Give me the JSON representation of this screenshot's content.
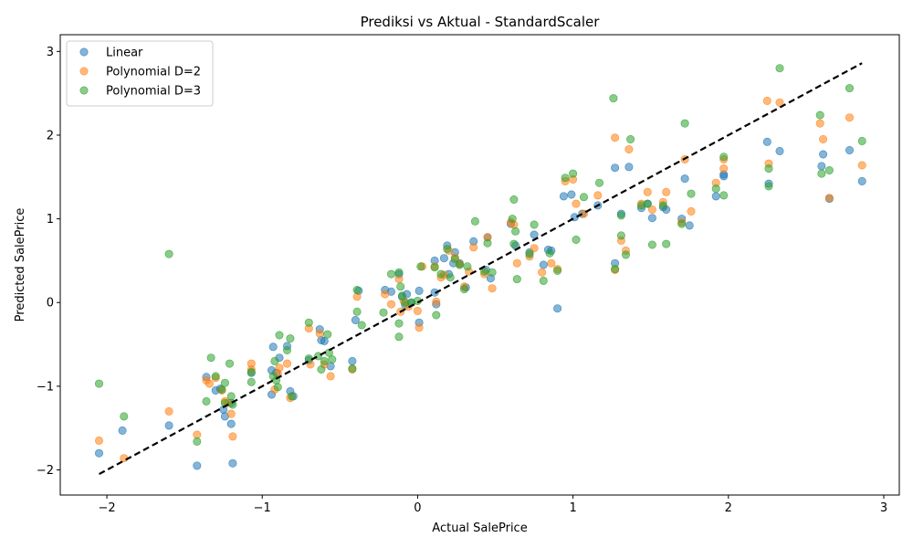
{
  "chart_data": {
    "type": "scatter",
    "title": "Prediksi vs Aktual - StandardScaler",
    "xlabel": "Actual SalePrice",
    "ylabel": "Predicted SalePrice",
    "xlim": [
      -2.3,
      3.1
    ],
    "ylim": [
      -2.3,
      3.2
    ],
    "xticks": [
      -2,
      -1,
      0,
      1,
      2,
      3
    ],
    "yticks": [
      -2,
      -1,
      0,
      1,
      2,
      3
    ],
    "xtick_labels": [
      "−2",
      "−1",
      "0",
      "1",
      "2",
      "3"
    ],
    "ytick_labels": [
      "−2",
      "−1",
      "0",
      "1",
      "2",
      "3"
    ],
    "grid": false,
    "legend_position": "top-left",
    "reference_line": {
      "x": [
        -2.05,
        2.86
      ],
      "y": [
        -2.05,
        2.86
      ],
      "color": "#000000",
      "style": "dashed"
    },
    "series": [
      {
        "name": "Linear",
        "color": "#1f77b4",
        "points": [
          [
            -2.05,
            -1.8
          ],
          [
            -1.9,
            -1.53
          ],
          [
            -1.6,
            -1.47
          ],
          [
            -1.42,
            -1.95
          ],
          [
            -1.19,
            -1.92
          ],
          [
            -1.36,
            -0.89
          ],
          [
            -1.3,
            -1.05
          ],
          [
            -1.27,
            -1.03
          ],
          [
            -1.25,
            -1.28
          ],
          [
            -1.24,
            -1.36
          ],
          [
            -1.2,
            -1.45
          ],
          [
            -1.2,
            -1.2
          ],
          [
            -1.07,
            -0.84
          ],
          [
            -0.94,
            -1.1
          ],
          [
            -0.94,
            -0.81
          ],
          [
            -0.93,
            -0.53
          ],
          [
            -0.91,
            -0.84
          ],
          [
            -0.89,
            -0.66
          ],
          [
            -0.84,
            -0.52
          ],
          [
            -0.82,
            -1.06
          ],
          [
            -0.8,
            -1.12
          ],
          [
            -0.7,
            -0.69
          ],
          [
            -0.63,
            -0.32
          ],
          [
            -0.62,
            -0.45
          ],
          [
            -0.6,
            -0.46
          ],
          [
            -0.56,
            -0.76
          ],
          [
            -0.42,
            -0.7
          ],
          [
            -0.4,
            -0.21
          ],
          [
            -0.38,
            0.14
          ],
          [
            -0.21,
            0.15
          ],
          [
            -0.17,
            0.13
          ],
          [
            -0.12,
            0.34
          ],
          [
            -0.1,
            0.07
          ],
          [
            -0.08,
            -0.03
          ],
          [
            -0.07,
            0.1
          ],
          [
            -0.04,
            0.0
          ],
          [
            0.01,
            0.14
          ],
          [
            0.01,
            -0.24
          ],
          [
            0.11,
            0.5
          ],
          [
            0.11,
            0.12
          ],
          [
            0.12,
            -0.02
          ],
          [
            0.17,
            0.53
          ],
          [
            0.19,
            0.68
          ],
          [
            0.2,
            0.34
          ],
          [
            0.23,
            0.47
          ],
          [
            0.24,
            0.6
          ],
          [
            0.27,
            0.47
          ],
          [
            0.31,
            0.18
          ],
          [
            0.36,
            0.73
          ],
          [
            0.44,
            0.39
          ],
          [
            0.45,
            0.78
          ],
          [
            0.47,
            0.29
          ],
          [
            0.6,
            0.94
          ],
          [
            0.63,
            0.68
          ],
          [
            0.72,
            0.6
          ],
          [
            0.75,
            0.81
          ],
          [
            0.81,
            0.45
          ],
          [
            0.84,
            0.63
          ],
          [
            0.86,
            0.62
          ],
          [
            0.9,
            -0.07
          ],
          [
            0.94,
            1.27
          ],
          [
            0.99,
            1.29
          ],
          [
            1.01,
            1.02
          ],
          [
            1.06,
            1.06
          ],
          [
            1.16,
            1.16
          ],
          [
            1.27,
            1.61
          ],
          [
            1.27,
            0.47
          ],
          [
            1.31,
            1.06
          ],
          [
            1.36,
            1.62
          ],
          [
            1.44,
            1.13
          ],
          [
            1.48,
            1.18
          ],
          [
            1.51,
            1.01
          ],
          [
            1.58,
            1.14
          ],
          [
            1.6,
            1.11
          ],
          [
            1.7,
            1.0
          ],
          [
            1.72,
            1.48
          ],
          [
            1.75,
            0.92
          ],
          [
            1.92,
            1.27
          ],
          [
            1.97,
            1.51
          ],
          [
            1.97,
            1.53
          ],
          [
            2.25,
            1.92
          ],
          [
            2.26,
            1.42
          ],
          [
            2.33,
            1.81
          ],
          [
            2.6,
            1.63
          ],
          [
            2.61,
            1.77
          ],
          [
            2.65,
            1.24
          ],
          [
            2.78,
            1.82
          ],
          [
            2.86,
            1.45
          ]
        ]
      },
      {
        "name": "Polynomial D=2",
        "color": "#ff7f0e",
        "points": [
          [
            -2.05,
            -1.65
          ],
          [
            -1.89,
            -1.86
          ],
          [
            -1.6,
            -1.3
          ],
          [
            -1.42,
            -1.58
          ],
          [
            -1.19,
            -1.6
          ],
          [
            -1.36,
            -0.93
          ],
          [
            -1.34,
            -0.97
          ],
          [
            -1.3,
            -0.9
          ],
          [
            -1.26,
            -1.05
          ],
          [
            -1.24,
            -1.18
          ],
          [
            -1.22,
            -1.2
          ],
          [
            -1.2,
            -1.33
          ],
          [
            -1.07,
            -0.73
          ],
          [
            -1.07,
            -0.8
          ],
          [
            -0.92,
            -1.04
          ],
          [
            -0.9,
            -0.85
          ],
          [
            -0.89,
            -0.78
          ],
          [
            -0.84,
            -0.73
          ],
          [
            -0.82,
            -1.14
          ],
          [
            -0.7,
            -0.31
          ],
          [
            -0.69,
            -0.74
          ],
          [
            -0.63,
            -0.37
          ],
          [
            -0.6,
            -0.74
          ],
          [
            -0.56,
            -0.88
          ],
          [
            -0.42,
            -0.8
          ],
          [
            -0.39,
            0.07
          ],
          [
            -0.21,
            0.1
          ],
          [
            -0.17,
            -0.02
          ],
          [
            -0.12,
            0.28
          ],
          [
            -0.11,
            -0.11
          ],
          [
            -0.09,
            0.02
          ],
          [
            -0.06,
            -0.05
          ],
          [
            0.0,
            -0.1
          ],
          [
            0.01,
            -0.3
          ],
          [
            0.03,
            0.43
          ],
          [
            0.11,
            0.43
          ],
          [
            0.12,
            0.01
          ],
          [
            0.15,
            0.3
          ],
          [
            0.17,
            0.33
          ],
          [
            0.2,
            0.62
          ],
          [
            0.24,
            0.54
          ],
          [
            0.27,
            0.46
          ],
          [
            0.3,
            0.19
          ],
          [
            0.33,
            0.37
          ],
          [
            0.36,
            0.66
          ],
          [
            0.43,
            0.34
          ],
          [
            0.45,
            0.78
          ],
          [
            0.48,
            0.17
          ],
          [
            0.6,
            0.96
          ],
          [
            0.62,
            0.93
          ],
          [
            0.64,
            0.47
          ],
          [
            0.72,
            0.55
          ],
          [
            0.75,
            0.65
          ],
          [
            0.8,
            0.36
          ],
          [
            0.86,
            0.47
          ],
          [
            0.9,
            0.4
          ],
          [
            0.95,
            1.45
          ],
          [
            1.0,
            1.47
          ],
          [
            1.02,
            1.18
          ],
          [
            1.07,
            1.06
          ],
          [
            1.16,
            1.28
          ],
          [
            1.27,
            1.97
          ],
          [
            1.27,
            0.39
          ],
          [
            1.31,
            0.74
          ],
          [
            1.34,
            0.62
          ],
          [
            1.36,
            1.83
          ],
          [
            1.44,
            1.18
          ],
          [
            1.48,
            1.32
          ],
          [
            1.51,
            1.11
          ],
          [
            1.58,
            1.2
          ],
          [
            1.6,
            1.32
          ],
          [
            1.7,
            0.96
          ],
          [
            1.72,
            1.71
          ],
          [
            1.76,
            1.09
          ],
          [
            1.92,
            1.43
          ],
          [
            1.97,
            1.6
          ],
          [
            1.97,
            1.71
          ],
          [
            2.25,
            2.41
          ],
          [
            2.26,
            1.66
          ],
          [
            2.33,
            2.39
          ],
          [
            2.59,
            2.14
          ],
          [
            2.61,
            1.95
          ],
          [
            2.65,
            1.25
          ],
          [
            2.78,
            2.21
          ],
          [
            2.86,
            1.64
          ]
        ]
      },
      {
        "name": "Polynomial D=3",
        "color": "#2ca02c",
        "points": [
          [
            -2.05,
            -0.97
          ],
          [
            -1.89,
            -1.36
          ],
          [
            -1.6,
            0.58
          ],
          [
            -1.42,
            -1.66
          ],
          [
            -1.36,
            -1.18
          ],
          [
            -1.33,
            -0.66
          ],
          [
            -1.3,
            -0.88
          ],
          [
            -1.26,
            -1.04
          ],
          [
            -1.24,
            -0.96
          ],
          [
            -1.24,
            -1.2
          ],
          [
            -1.21,
            -0.73
          ],
          [
            -1.2,
            -1.12
          ],
          [
            -1.19,
            -1.22
          ],
          [
            -1.07,
            -0.95
          ],
          [
            -1.07,
            -0.83
          ],
          [
            -0.93,
            -0.88
          ],
          [
            -0.92,
            -0.7
          ],
          [
            -0.91,
            -0.93
          ],
          [
            -0.9,
            -1.01
          ],
          [
            -0.89,
            -0.39
          ],
          [
            -0.84,
            -0.57
          ],
          [
            -0.82,
            -0.43
          ],
          [
            -0.81,
            -1.12
          ],
          [
            -0.7,
            -0.24
          ],
          [
            -0.7,
            -0.67
          ],
          [
            -0.64,
            -0.64
          ],
          [
            -0.62,
            -0.8
          ],
          [
            -0.6,
            -0.7
          ],
          [
            -0.58,
            -0.38
          ],
          [
            -0.57,
            -0.6
          ],
          [
            -0.55,
            -0.68
          ],
          [
            -0.42,
            -0.79
          ],
          [
            -0.39,
            0.15
          ],
          [
            -0.39,
            -0.11
          ],
          [
            -0.36,
            -0.27
          ],
          [
            -0.22,
            -0.12
          ],
          [
            -0.17,
            0.34
          ],
          [
            -0.12,
            0.36
          ],
          [
            -0.12,
            -0.25
          ],
          [
            -0.12,
            -0.41
          ],
          [
            -0.11,
            0.19
          ],
          [
            -0.1,
            0.08
          ],
          [
            -0.08,
            0.0
          ],
          [
            -0.04,
            0.0
          ],
          [
            0.0,
            0.02
          ],
          [
            0.02,
            0.43
          ],
          [
            0.11,
            0.42
          ],
          [
            0.12,
            -0.15
          ],
          [
            0.15,
            0.34
          ],
          [
            0.19,
            0.64
          ],
          [
            0.21,
            0.3
          ],
          [
            0.24,
            0.52
          ],
          [
            0.27,
            0.45
          ],
          [
            0.3,
            0.16
          ],
          [
            0.32,
            0.43
          ],
          [
            0.37,
            0.97
          ],
          [
            0.43,
            0.37
          ],
          [
            0.45,
            0.71
          ],
          [
            0.48,
            0.36
          ],
          [
            0.61,
            1.0
          ],
          [
            0.62,
            1.23
          ],
          [
            0.62,
            0.7
          ],
          [
            0.63,
            0.85
          ],
          [
            0.64,
            0.28
          ],
          [
            0.72,
            0.58
          ],
          [
            0.75,
            0.93
          ],
          [
            0.81,
            0.26
          ],
          [
            0.85,
            0.59
          ],
          [
            0.9,
            0.38
          ],
          [
            0.95,
            1.49
          ],
          [
            1.0,
            1.54
          ],
          [
            1.02,
            0.75
          ],
          [
            1.07,
            1.26
          ],
          [
            1.17,
            1.43
          ],
          [
            1.26,
            2.44
          ],
          [
            1.27,
            0.4
          ],
          [
            1.31,
            1.04
          ],
          [
            1.31,
            0.8
          ],
          [
            1.34,
            0.57
          ],
          [
            1.37,
            1.95
          ],
          [
            1.44,
            1.16
          ],
          [
            1.48,
            1.18
          ],
          [
            1.51,
            0.69
          ],
          [
            1.58,
            1.16
          ],
          [
            1.6,
            0.7
          ],
          [
            1.7,
            0.94
          ],
          [
            1.72,
            2.14
          ],
          [
            1.76,
            1.3
          ],
          [
            1.92,
            1.36
          ],
          [
            1.97,
            1.74
          ],
          [
            1.97,
            1.28
          ],
          [
            2.26,
            1.39
          ],
          [
            2.26,
            1.6
          ],
          [
            2.33,
            2.8
          ],
          [
            2.59,
            2.24
          ],
          [
            2.6,
            1.54
          ],
          [
            2.65,
            1.58
          ],
          [
            2.78,
            2.56
          ],
          [
            2.86,
            1.93
          ]
        ]
      }
    ]
  }
}
